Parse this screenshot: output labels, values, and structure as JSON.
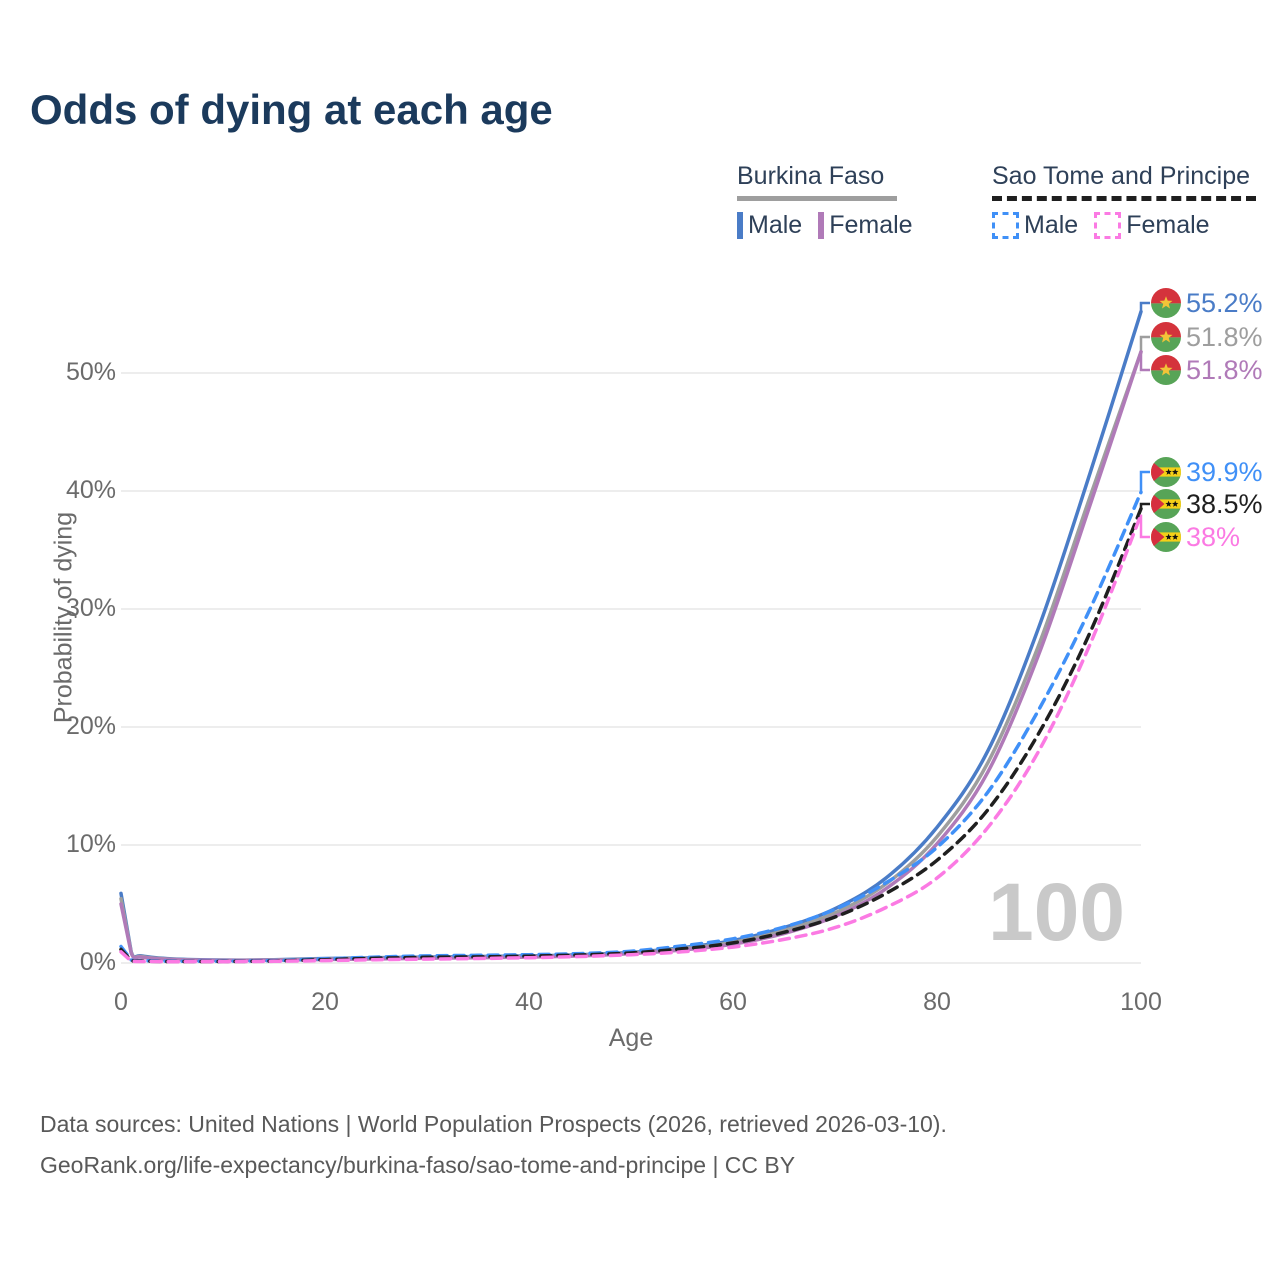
{
  "title": "Odds of dying at each age",
  "legend": {
    "groups": [
      {
        "name": "Burkina Faso",
        "line_style": "solid",
        "underline_color": "#9e9e9e",
        "items": [
          {
            "label": "Male",
            "color": "#4a7cc7"
          },
          {
            "label": "Female",
            "color": "#b07ab8"
          }
        ]
      },
      {
        "name": "Sao Tome and Principe",
        "line_style": "dashed",
        "underline_color": "#1f1f1f",
        "items": [
          {
            "label": "Male",
            "color": "#4090f7"
          },
          {
            "label": "Female",
            "color": "#fb7ae3"
          }
        ]
      }
    ]
  },
  "watermark": "100",
  "footer": {
    "line1": "Data sources: United Nations | World Population Prospects (2026, retrieved 2026-03-10).",
    "line2": "GeoRank.org/life-expectancy/burkina-faso/sao-tome-and-principe | CC BY"
  },
  "chart_data": {
    "type": "line",
    "title": "Odds of dying at each age",
    "xlabel": "Age",
    "ylabel": "Probability of dying",
    "xlim": [
      0,
      100
    ],
    "ylim": [
      0,
      57
    ],
    "xticks": [
      0,
      20,
      40,
      60,
      80,
      100
    ],
    "yticks": [
      0,
      10,
      20,
      30,
      40,
      50
    ],
    "ytick_suffix": "%",
    "grid": "horizontal",
    "legend_position": "top-right",
    "x": [
      0,
      1,
      2,
      5,
      10,
      15,
      20,
      25,
      30,
      35,
      40,
      45,
      50,
      55,
      60,
      65,
      70,
      75,
      80,
      85,
      90,
      95,
      100
    ],
    "series": [
      {
        "name": "Burkina Faso — Male",
        "country": "Burkina Faso",
        "sex": "Male",
        "style": "solid",
        "color": "#4a7cc7",
        "flag": "bf",
        "end_label": "55.2%",
        "values": [
          5.9,
          0.95,
          0.6,
          0.35,
          0.25,
          0.28,
          0.38,
          0.45,
          0.5,
          0.55,
          0.6,
          0.7,
          0.9,
          1.3,
          1.9,
          3.0,
          4.6,
          7.2,
          11.5,
          18.0,
          28.5,
          41.5,
          55.2
        ]
      },
      {
        "name": "Burkina Faso — Both sexes",
        "country": "Burkina Faso",
        "sex": "Both",
        "style": "solid",
        "color": "#9e9e9e",
        "flag": "bf",
        "end_label": "51.8%",
        "values": [
          5.45,
          0.9,
          0.55,
          0.32,
          0.23,
          0.26,
          0.34,
          0.4,
          0.45,
          0.5,
          0.55,
          0.65,
          0.85,
          1.2,
          1.75,
          2.75,
          4.25,
          6.7,
          10.7,
          17.0,
          27.0,
          39.5,
          51.8
        ]
      },
      {
        "name": "Burkina Faso — Female",
        "country": "Burkina Faso",
        "sex": "Female",
        "style": "solid",
        "color": "#b07ab8",
        "flag": "bf",
        "end_label": "51.8%",
        "values": [
          5.0,
          0.85,
          0.5,
          0.3,
          0.22,
          0.24,
          0.3,
          0.35,
          0.4,
          0.45,
          0.5,
          0.6,
          0.8,
          1.1,
          1.6,
          2.5,
          3.95,
          6.3,
          10.1,
          16.2,
          26.2,
          38.8,
          51.8
        ]
      },
      {
        "name": "Sao Tome and Principe — Male",
        "country": "Sao Tome and Principe",
        "sex": "Male",
        "style": "dashed",
        "color": "#4090f7",
        "flag": "st",
        "end_label": "39.9%",
        "values": [
          1.4,
          0.25,
          0.2,
          0.15,
          0.15,
          0.2,
          0.35,
          0.5,
          0.6,
          0.65,
          0.7,
          0.8,
          1.0,
          1.45,
          2.05,
          3.05,
          4.55,
          6.8,
          9.8,
          14.5,
          21.5,
          30.0,
          39.9
        ]
      },
      {
        "name": "Sao Tome and Principe — Both sexes",
        "country": "Sao Tome and Principe",
        "sex": "Both",
        "style": "dashed",
        "color": "#1f1f1f",
        "flag": "st",
        "end_label": "38.5%",
        "values": [
          1.15,
          0.2,
          0.17,
          0.12,
          0.13,
          0.17,
          0.28,
          0.4,
          0.48,
          0.52,
          0.58,
          0.68,
          0.85,
          1.2,
          1.7,
          2.6,
          3.9,
          5.9,
          8.7,
          13.0,
          19.5,
          28.0,
          38.5
        ]
      },
      {
        "name": "Sao Tome and Principe — Female",
        "country": "Sao Tome and Principe",
        "sex": "Female",
        "style": "dashed",
        "color": "#fb7ae3",
        "flag": "st",
        "end_label": "38%",
        "values": [
          0.95,
          0.15,
          0.13,
          0.1,
          0.11,
          0.14,
          0.2,
          0.28,
          0.33,
          0.38,
          0.45,
          0.55,
          0.7,
          0.95,
          1.35,
          2.0,
          3.0,
          4.7,
          7.2,
          11.5,
          18.0,
          27.0,
          38.0
        ]
      }
    ]
  }
}
